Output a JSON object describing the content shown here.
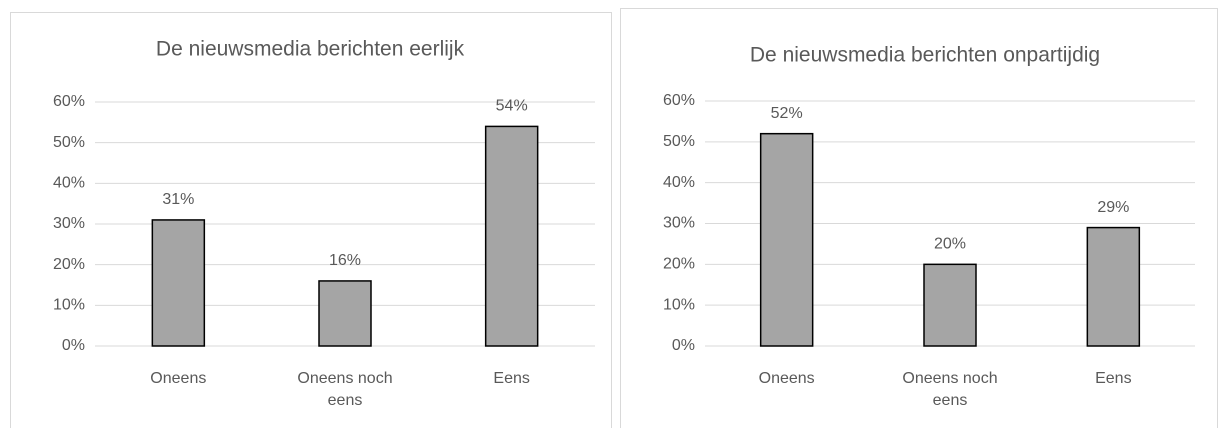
{
  "chart_data": [
    {
      "type": "bar",
      "title": "De nieuwsmedia berichten eerlijk",
      "categories": [
        "Oneens",
        "Oneens noch eens",
        "Eens"
      ],
      "values": [
        31,
        16,
        54
      ],
      "value_labels": [
        "31%",
        "16%",
        "54%"
      ],
      "color": "#a5a5a5",
      "ylim": [
        0,
        60
      ],
      "yticks": [
        {
          "value": 0,
          "label": "0%"
        },
        {
          "value": 10,
          "label": "10%"
        },
        {
          "value": 20,
          "label": "20%"
        },
        {
          "value": 30,
          "label": "30%"
        },
        {
          "value": 40,
          "label": "40%"
        },
        {
          "value": 50,
          "label": "50%"
        },
        {
          "value": 60,
          "label": "60%"
        }
      ],
      "grid": true
    },
    {
      "type": "bar",
      "title": "De nieuwsmedia berichten onpartijdig",
      "categories": [
        "Oneens",
        "Oneens noch eens",
        "Eens"
      ],
      "values": [
        52,
        20,
        29
      ],
      "value_labels": [
        "52%",
        "20%",
        "29%"
      ],
      "color": "#a5a5a5",
      "ylim": [
        0,
        60
      ],
      "yticks": [
        {
          "value": 0,
          "label": "0%"
        },
        {
          "value": 10,
          "label": "10%"
        },
        {
          "value": 20,
          "label": "20%"
        },
        {
          "value": 30,
          "label": "30%"
        },
        {
          "value": 40,
          "label": "40%"
        },
        {
          "value": 50,
          "label": "50%"
        },
        {
          "value": 60,
          "label": "60%"
        }
      ],
      "grid": true
    }
  ]
}
